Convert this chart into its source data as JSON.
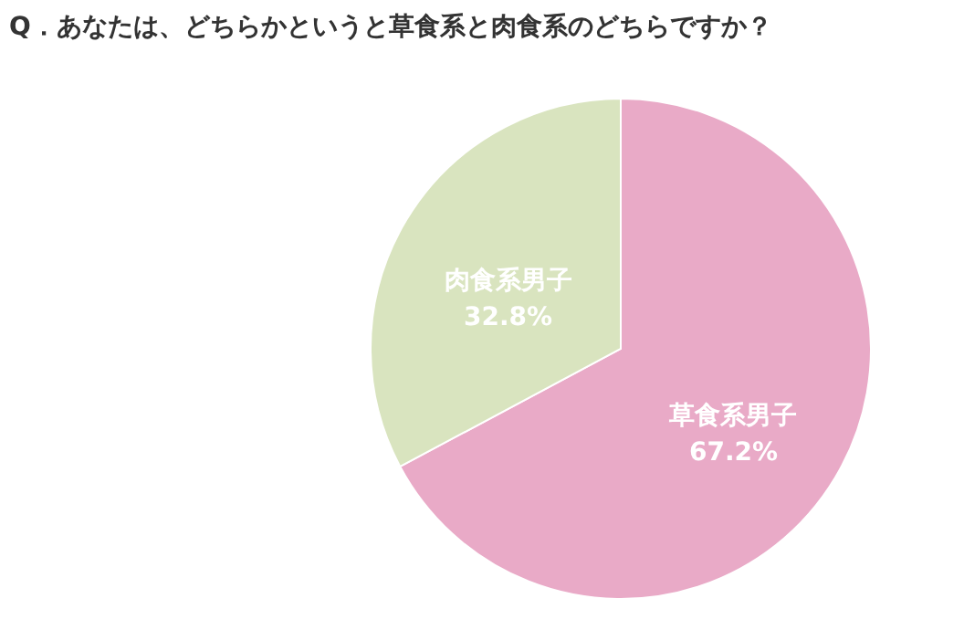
{
  "chart_data": {
    "type": "pie",
    "title": "Q．あなたは、どちらかというと草食系と肉食系のどちらですか？",
    "categories": [
      "草食系男子",
      "肉食系男子"
    ],
    "values": [
      67.2,
      32.8
    ],
    "value_labels": [
      "67.2%",
      "32.8%"
    ],
    "colors": [
      "#e9aac7",
      "#d9e4bf"
    ],
    "legend": false
  }
}
